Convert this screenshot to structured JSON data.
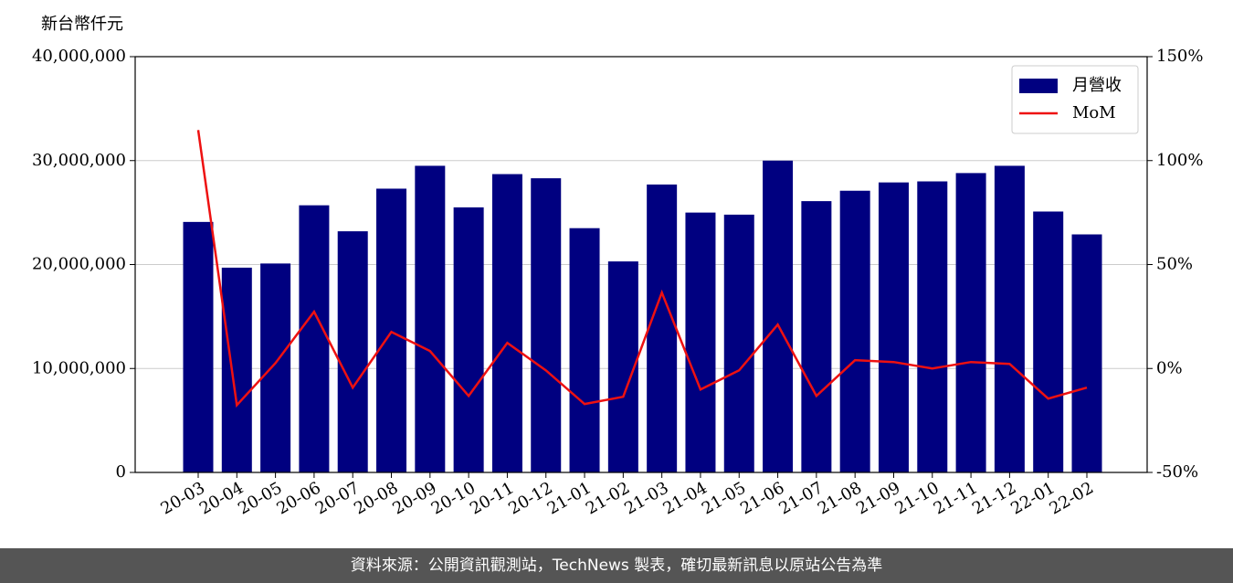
{
  "chart_data": {
    "type": "bar",
    "y_label": "新台幣仟元",
    "categories": [
      "20-03",
      "20-04",
      "20-05",
      "20-06",
      "20-07",
      "20-08",
      "20-09",
      "20-10",
      "20-11",
      "20-12",
      "21-01",
      "21-02",
      "21-03",
      "21-04",
      "21-05",
      "21-06",
      "21-07",
      "21-08",
      "21-09",
      "21-10",
      "21-11",
      "21-12",
      "22-01",
      "22-02"
    ],
    "series": [
      {
        "name": "月營收",
        "type": "bar",
        "color": "#000080",
        "values": [
          24100000,
          19700000,
          20100000,
          25700000,
          23200000,
          27300000,
          29500000,
          25500000,
          28700000,
          28300000,
          23500000,
          20300000,
          27700000,
          25000000,
          24800000,
          30000000,
          26100000,
          27100000,
          27900000,
          28000000,
          28800000,
          29500000,
          25100000,
          22900000
        ]
      },
      {
        "name": "MoM",
        "type": "line",
        "axis": "y2",
        "color": "#ee1111",
        "values": [
          114.7,
          -17.6,
          2.6,
          27.3,
          -9.2,
          17.6,
          8.4,
          -13.2,
          12.3,
          -0.9,
          -17.1,
          -13.6,
          36.5,
          -10.1,
          -0.9,
          21.1,
          -13.2,
          4.0,
          3.1,
          0,
          3.1,
          2.2,
          -14.5,
          -9.2
        ]
      }
    ],
    "ylim": [
      0,
      40000000
    ],
    "yticks": [
      0,
      {
        "value": 10000000,
        "label": "10,000,000"
      },
      {
        "value": 20000000,
        "label": "20,000,000"
      },
      {
        "value": 30000000,
        "label": "30,000,000"
      },
      {
        "value": 40000000,
        "label": "40,000,000"
      }
    ],
    "y2lim": [
      -50,
      150
    ],
    "y2ticks": [
      {
        "value": -50,
        "label": "-50%"
      },
      {
        "value": 0,
        "label": "0%"
      },
      {
        "value": 50,
        "label": "50%"
      },
      {
        "value": 100,
        "label": "100%"
      },
      {
        "value": 150,
        "label": "150%"
      }
    ],
    "grid": true,
    "legend": "upper right"
  },
  "footer": "資料來源：公開資訊觀測站，TechNews 製表，確切最新訊息以原站公告為準"
}
